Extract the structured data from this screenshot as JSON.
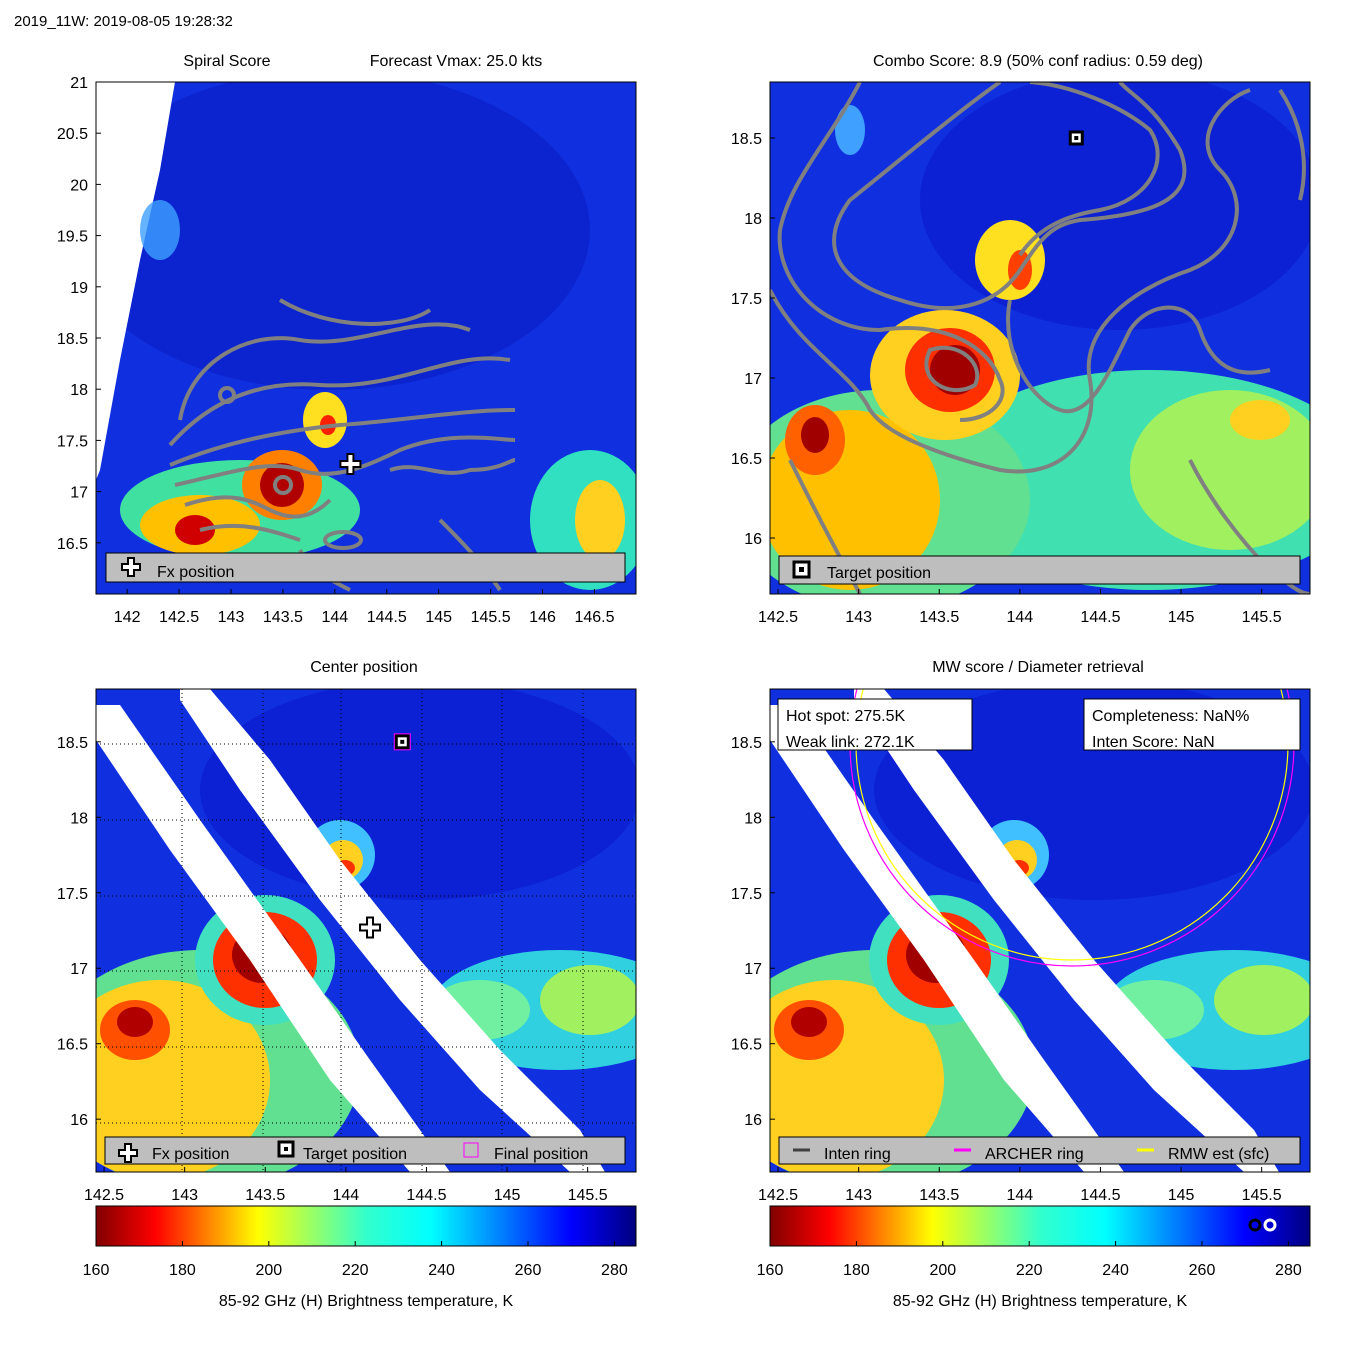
{
  "header": "2019_11W: 2019-08-05 19:28:32",
  "panels": {
    "spiral": {
      "title_left": "Spiral Score",
      "title_right": "Forecast Vmax: 25.0 kts",
      "legend": [
        "Fx position"
      ]
    },
    "combo": {
      "title": "Combo Score: 8.9  (50% conf radius: 0.59 deg)",
      "legend": [
        "Target position"
      ]
    },
    "center": {
      "title": "Center position",
      "legend": [
        "Fx position",
        "Target position",
        "Final position"
      ]
    },
    "mw": {
      "title": "MW score / Diameter retrieval",
      "hot_spot": "Hot spot: 275.5K",
      "weak_link": "Weak link: 272.1K",
      "completeness": "Completeness: NaN%",
      "inten_score": "Inten Score: NaN",
      "legend": [
        "Inten ring",
        "ARCHER ring",
        "RMW est (sfc)"
      ]
    }
  },
  "colorbar": {
    "label": "85-92 GHz (H) Brightness temperature, K",
    "ticks": [
      "160",
      "180",
      "200",
      "220",
      "240",
      "260",
      "280"
    ],
    "range": [
      160,
      285
    ]
  },
  "colors": {
    "legend_bg": "#bebebe",
    "contour": "#808080",
    "archer_ring": "#ff00ff",
    "rmw_ring": "#ffff00",
    "inten_ring": "#404040",
    "final_marker": "#ff00ff"
  },
  "chart_data": [
    {
      "type": "heatmap",
      "title": "Spiral Score",
      "xlim": [
        141.7,
        146.9
      ],
      "ylim": [
        16.0,
        21.0
      ],
      "xticks": [
        "142",
        "142.5",
        "143",
        "143.5",
        "144",
        "144.5",
        "145",
        "145.5",
        "146",
        "146.5"
      ],
      "yticks": [
        "16.5",
        "17",
        "17.5",
        "18",
        "18.5",
        "19",
        "19.5",
        "20",
        "20.5",
        "21"
      ],
      "markers": [
        {
          "name": "Fx position",
          "lon": 144.15,
          "lat": 17.27
        }
      ]
    },
    {
      "type": "heatmap",
      "title": "Combo Score: 8.9",
      "xlim": [
        142.45,
        145.8
      ],
      "ylim": [
        15.65,
        18.85
      ],
      "xticks": [
        "142.5",
        "143",
        "143.5",
        "144",
        "144.5",
        "145",
        "145.5"
      ],
      "yticks": [
        "16",
        "16.5",
        "17",
        "17.5",
        "18",
        "18.5"
      ],
      "markers": [
        {
          "name": "Target position",
          "lon": 144.35,
          "lat": 18.5
        }
      ]
    },
    {
      "type": "heatmap",
      "title": "Center position",
      "xlim": [
        142.45,
        145.8
      ],
      "ylim": [
        15.65,
        18.85
      ],
      "xticks": [
        "142.5",
        "143",
        "143.5",
        "144",
        "144.5",
        "145",
        "145.5"
      ],
      "yticks": [
        "16",
        "16.5",
        "17",
        "17.5",
        "18",
        "18.5"
      ],
      "markers": [
        {
          "name": "Fx position",
          "lon": 144.15,
          "lat": 17.27
        },
        {
          "name": "Target position",
          "lon": 144.35,
          "lat": 18.5
        },
        {
          "name": "Final position",
          "lon": 144.35,
          "lat": 18.5
        }
      ]
    },
    {
      "type": "heatmap",
      "title": "MW score / Diameter retrieval",
      "xlim": [
        142.45,
        145.8
      ],
      "ylim": [
        15.65,
        18.85
      ],
      "xticks": [
        "142.5",
        "143",
        "143.5",
        "144",
        "144.5",
        "145",
        "145.5"
      ],
      "yticks": [
        "16",
        "16.5",
        "17",
        "17.5",
        "18",
        "18.5"
      ],
      "rings": [
        {
          "name": "ARCHER ring",
          "center": [
            144.35,
            18.5
          ],
          "radius_deg": 1.45
        },
        {
          "name": "RMW est (sfc)",
          "center": [
            144.35,
            18.5
          ],
          "radius_deg": 1.42
        }
      ]
    }
  ]
}
